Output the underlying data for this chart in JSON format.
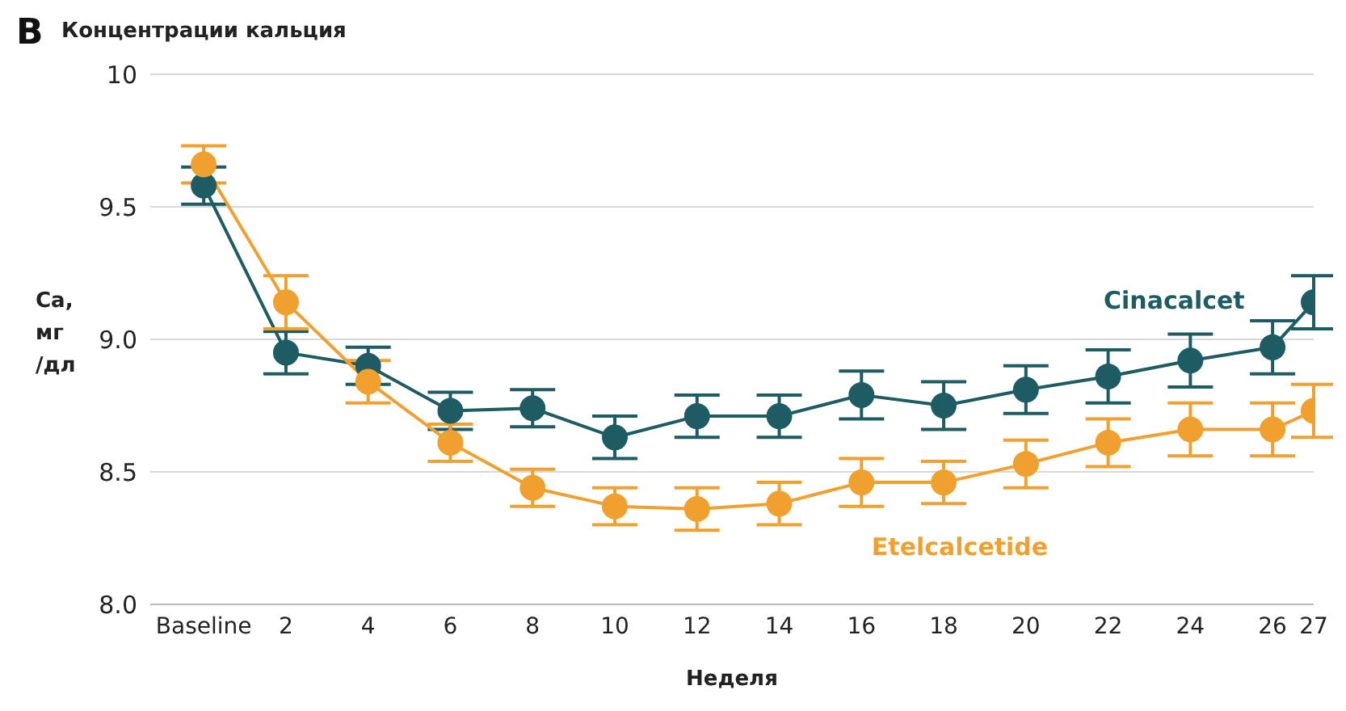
{
  "chart_data": {
    "type": "line",
    "title": "Концентрации кальция",
    "xlabel": "Неделя",
    "ylabel": "Ca, мг /дл",
    "annotations": [
      "B"
    ],
    "x": [
      0,
      2,
      4,
      6,
      8,
      10,
      12,
      14,
      16,
      18,
      20,
      22,
      24,
      26,
      27
    ],
    "xlim": [
      -1.3,
      27
    ],
    "xticks": [
      {
        "value": 0,
        "label": "Baseline"
      },
      2,
      4,
      6,
      8,
      10,
      12,
      14,
      16,
      18,
      20,
      22,
      24,
      26,
      27
    ],
    "ylim": [
      8,
      10
    ],
    "yticks": [
      {
        "value": 8,
        "label": "8.0"
      },
      {
        "value": 8.5,
        "label": "8.5"
      },
      {
        "value": 9,
        "label": "9.0"
      },
      {
        "value": 9.5,
        "label": "9.5"
      },
      10
    ],
    "grid": "y",
    "legend": false,
    "marker": "circle",
    "line_style": "solid",
    "series": [
      {
        "name": "Cinacalcet",
        "color": "#1d5c63",
        "values": [
          9.58,
          8.95,
          8.9,
          8.73,
          8.74,
          8.63,
          8.71,
          8.71,
          8.79,
          8.75,
          8.81,
          8.86,
          8.92,
          8.97,
          9.14
        ],
        "errors": [
          0.07,
          0.08,
          0.07,
          0.07,
          0.07,
          0.08,
          0.08,
          0.08,
          0.09,
          0.09,
          0.09,
          0.1,
          0.1,
          0.1,
          0.1
        ]
      },
      {
        "name": "Etelcalcetide",
        "color": "#f0a02e",
        "values": [
          9.66,
          9.14,
          8.84,
          8.61,
          8.44,
          8.37,
          8.36,
          8.38,
          8.46,
          8.46,
          8.53,
          8.61,
          8.66,
          8.66,
          8.73
        ],
        "errors": [
          0.07,
          0.1,
          0.08,
          0.07,
          0.07,
          0.07,
          0.08,
          0.08,
          0.09,
          0.08,
          0.09,
          0.09,
          0.1,
          0.1,
          0.1
        ]
      }
    ]
  }
}
